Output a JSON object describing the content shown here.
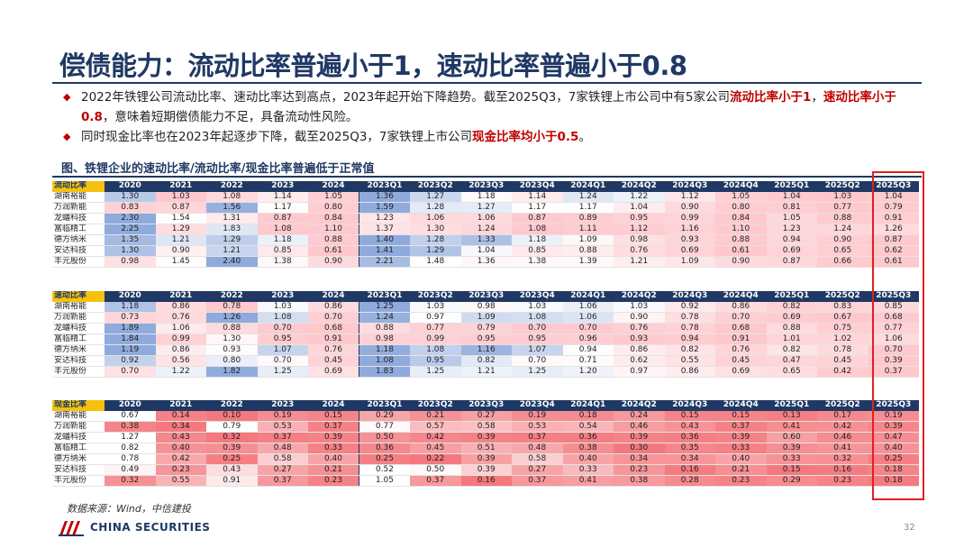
{
  "title": "偿债能力：流动比率普遍小于1，速动比率普遍小于0.8",
  "bullets": {
    "b1_a": "2022年铁锂公司流动比率、速动比率达到高点，2023年起开始下降趋势。截至2025Q3，7家铁锂上市公司中有5家公司",
    "b1_red1": "流动比率小于1",
    "b1_b": "，",
    "b1_red2": "速动比率小于0.8",
    "b1_c": "，意味着短期偿债能力不足，具备流动性风险。",
    "b2_a": "同时现金比率也在2023年起逐步下降，截至2025Q3，7家铁锂上市公司",
    "b2_red": "现金比率均小于0.5",
    "b2_b": "。"
  },
  "figure_title": "图、铁锂企业的速动比率/流动比率/现金比率普遍低于正常值",
  "columns": [
    "2020",
    "2021",
    "2022",
    "2023",
    "2024",
    "2023Q1",
    "2023Q2",
    "2023Q3",
    "2023Q4",
    "2024Q1",
    "2024Q2",
    "2024Q3",
    "2024Q4",
    "2025Q1",
    "2025Q2",
    "2025Q3"
  ],
  "companies": [
    "湖南裕能",
    "万润新能",
    "龙蟠科技",
    "富临精工",
    "德方纳米",
    "安达科技",
    "丰元股份"
  ],
  "tables": [
    {
      "label": "流动比率",
      "kind": "blue",
      "rows": [
        [
          "1.30",
          "1.03",
          "1.08",
          "1.14",
          "1.05",
          "1.36",
          "1.27",
          "1.18",
          "1.14",
          "1.24",
          "1.22",
          "1.12",
          "1.05",
          "1.04",
          "1.03",
          "1.04"
        ],
        [
          "0.83",
          "0.87",
          "1.56",
          "1.17",
          "0.80",
          "1.59",
          "1.28",
          "1.27",
          "1.17",
          "1.17",
          "1.04",
          "0.90",
          "0.80",
          "0.81",
          "0.77",
          "0.79"
        ],
        [
          "2.30",
          "1.54",
          "1.31",
          "0.87",
          "0.84",
          "1.23",
          "1.06",
          "1.06",
          "0.87",
          "0.89",
          "0.95",
          "0.99",
          "0.84",
          "1.05",
          "0.88",
          "0.91"
        ],
        [
          "2.25",
          "1.29",
          "1.83",
          "1.08",
          "1.10",
          "1.37",
          "1.30",
          "1.24",
          "1.08",
          "1.11",
          "1.12",
          "1.16",
          "1.10",
          "1.23",
          "1.24",
          "1.26"
        ],
        [
          "1.35",
          "1.21",
          "1.29",
          "1.18",
          "0.88",
          "1.40",
          "1.28",
          "1.33",
          "1.18",
          "1.09",
          "0.98",
          "0.93",
          "0.88",
          "0.94",
          "0.90",
          "0.87"
        ],
        [
          "1.30",
          "0.90",
          "1.21",
          "0.85",
          "0.61",
          "1.41",
          "1.29",
          "1.04",
          "0.85",
          "0.88",
          "0.76",
          "0.69",
          "0.61",
          "0.69",
          "0.65",
          "0.62"
        ],
        [
          "0.98",
          "1.45",
          "2.40",
          "1.38",
          "0.90",
          "2.21",
          "1.48",
          "1.36",
          "1.38",
          "1.39",
          "1.21",
          "1.09",
          "0.90",
          "0.87",
          "0.66",
          "0.61"
        ]
      ]
    },
    {
      "label": "速动比率",
      "kind": "blue",
      "rows": [
        [
          "1.18",
          "0.86",
          "0.78",
          "1.03",
          "0.86",
          "1.25",
          "1.03",
          "0.98",
          "1.03",
          "1.06",
          "1.03",
          "0.92",
          "0.86",
          "0.82",
          "0.83",
          "0.85"
        ],
        [
          "0.73",
          "0.76",
          "1.26",
          "1.08",
          "0.70",
          "1.24",
          "0.97",
          "1.09",
          "1.08",
          "1.06",
          "0.90",
          "0.78",
          "0.70",
          "0.69",
          "0.67",
          "0.68"
        ],
        [
          "1.89",
          "1.06",
          "0.88",
          "0.70",
          "0.68",
          "0.88",
          "0.77",
          "0.79",
          "0.70",
          "0.70",
          "0.76",
          "0.78",
          "0.68",
          "0.88",
          "0.75",
          "0.77"
        ],
        [
          "1.84",
          "0.99",
          "1.30",
          "0.95",
          "0.91",
          "0.98",
          "0.99",
          "0.95",
          "0.95",
          "0.96",
          "0.93",
          "0.94",
          "0.91",
          "1.01",
          "1.02",
          "1.06"
        ],
        [
          "1.19",
          "0.86",
          "0.93",
          "1.07",
          "0.76",
          "1.18",
          "1.08",
          "1.16",
          "1.07",
          "0.94",
          "0.86",
          "0.82",
          "0.76",
          "0.82",
          "0.78",
          "0.70"
        ],
        [
          "0.92",
          "0.56",
          "0.80",
          "0.70",
          "0.45",
          "1.08",
          "0.95",
          "0.82",
          "0.70",
          "0.71",
          "0.62",
          "0.55",
          "0.45",
          "0.47",
          "0.45",
          "0.39"
        ],
        [
          "0.70",
          "1.22",
          "1.82",
          "1.25",
          "0.69",
          "1.83",
          "1.25",
          "1.21",
          "1.25",
          "1.20",
          "0.97",
          "0.86",
          "0.69",
          "0.65",
          "0.42",
          "0.37"
        ]
      ]
    },
    {
      "label": "现金比率",
      "kind": "red",
      "rows": [
        [
          "0.67",
          "0.14",
          "0.10",
          "0.19",
          "0.15",
          "0.29",
          "0.21",
          "0.27",
          "0.19",
          "0.18",
          "0.24",
          "0.15",
          "0.15",
          "0.13",
          "0.17",
          "0.19"
        ],
        [
          "0.38",
          "0.34",
          "0.79",
          "0.53",
          "0.37",
          "0.77",
          "0.57",
          "0.58",
          "0.53",
          "0.54",
          "0.46",
          "0.43",
          "0.37",
          "0.41",
          "0.42",
          "0.39"
        ],
        [
          "1.27",
          "0.43",
          "0.32",
          "0.37",
          "0.39",
          "0.50",
          "0.42",
          "0.39",
          "0.37",
          "0.36",
          "0.39",
          "0.36",
          "0.39",
          "0.60",
          "0.46",
          "0.47"
        ],
        [
          "0.82",
          "0.40",
          "0.39",
          "0.48",
          "0.33",
          "0.36",
          "0.45",
          "0.51",
          "0.48",
          "0.38",
          "0.30",
          "0.35",
          "0.33",
          "0.39",
          "0.41",
          "0.40"
        ],
        [
          "0.78",
          "0.42",
          "0.25",
          "0.58",
          "0.40",
          "0.25",
          "0.22",
          "0.39",
          "0.58",
          "0.40",
          "0.34",
          "0.34",
          "0.40",
          "0.33",
          "0.32",
          "0.25"
        ],
        [
          "0.49",
          "0.23",
          "0.43",
          "0.27",
          "0.21",
          "0.52",
          "0.50",
          "0.39",
          "0.27",
          "0.33",
          "0.23",
          "0.16",
          "0.21",
          "0.15",
          "0.16",
          "0.18"
        ],
        [
          "0.32",
          "0.55",
          "0.91",
          "0.37",
          "0.23",
          "1.05",
          "0.37",
          "0.16",
          "0.37",
          "0.41",
          "0.38",
          "0.28",
          "0.23",
          "0.29",
          "0.23",
          "0.18"
        ]
      ]
    }
  ],
  "source": "数据来源：Wind，中信建投",
  "logo_text": "CHINA SECURITIES",
  "page_number": "32",
  "colors": {
    "navy": "#1f3864",
    "red": "#c00000",
    "highlight_box": "#e02020",
    "corner": "#f4c20d"
  }
}
